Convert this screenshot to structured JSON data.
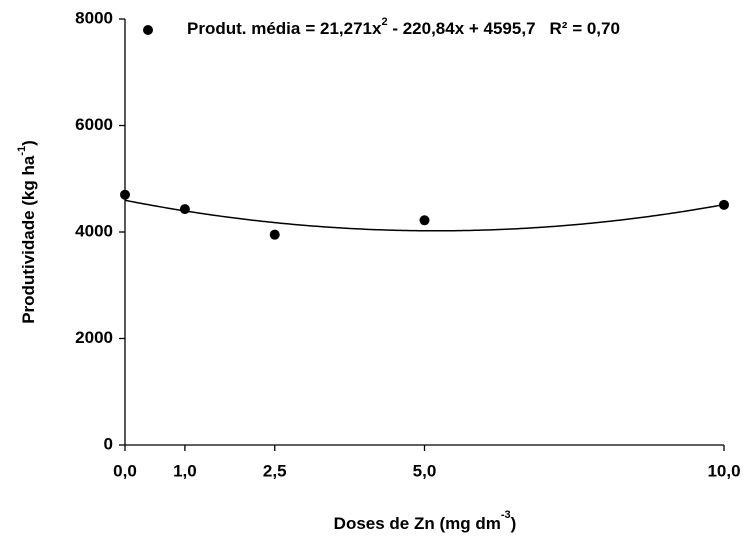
{
  "chart_data": {
    "type": "scatter",
    "x_label": {
      "text": "Doses de Zn (mg dm",
      "sup": "-3",
      "end": ")"
    },
    "y_label": {
      "text": "Produtividade (kg ha",
      "sup": "-1",
      "end": ")"
    },
    "series": [
      {
        "name": "Produt.  média",
        "color": "#000000",
        "x": [
          0,
          1,
          2.5,
          5,
          10
        ],
        "values": [
          4700,
          4430,
          3950,
          4220,
          4510
        ]
      }
    ],
    "trendline": {
      "coefficients": [
        4595.7,
        -220.84,
        21.271
      ],
      "equation": [
        "= 21,271x",
        "2",
        " - 220,84x + 4595,7"
      ],
      "r2_label": "R² = 0,70",
      "color": "#000000"
    },
    "xlim": [
      0,
      10
    ],
    "xticks": [
      {
        "value": 0,
        "label": "0,0"
      },
      {
        "value": 1,
        "label": "1,0"
      },
      {
        "value": 2.5,
        "label": "2,5"
      },
      {
        "value": 5,
        "label": "5,0"
      },
      {
        "value": 10,
        "label": "10,0"
      }
    ],
    "ylim": [
      0,
      8000
    ],
    "yticks": [
      0,
      2000,
      4000,
      6000,
      8000
    ],
    "grid": false
  }
}
